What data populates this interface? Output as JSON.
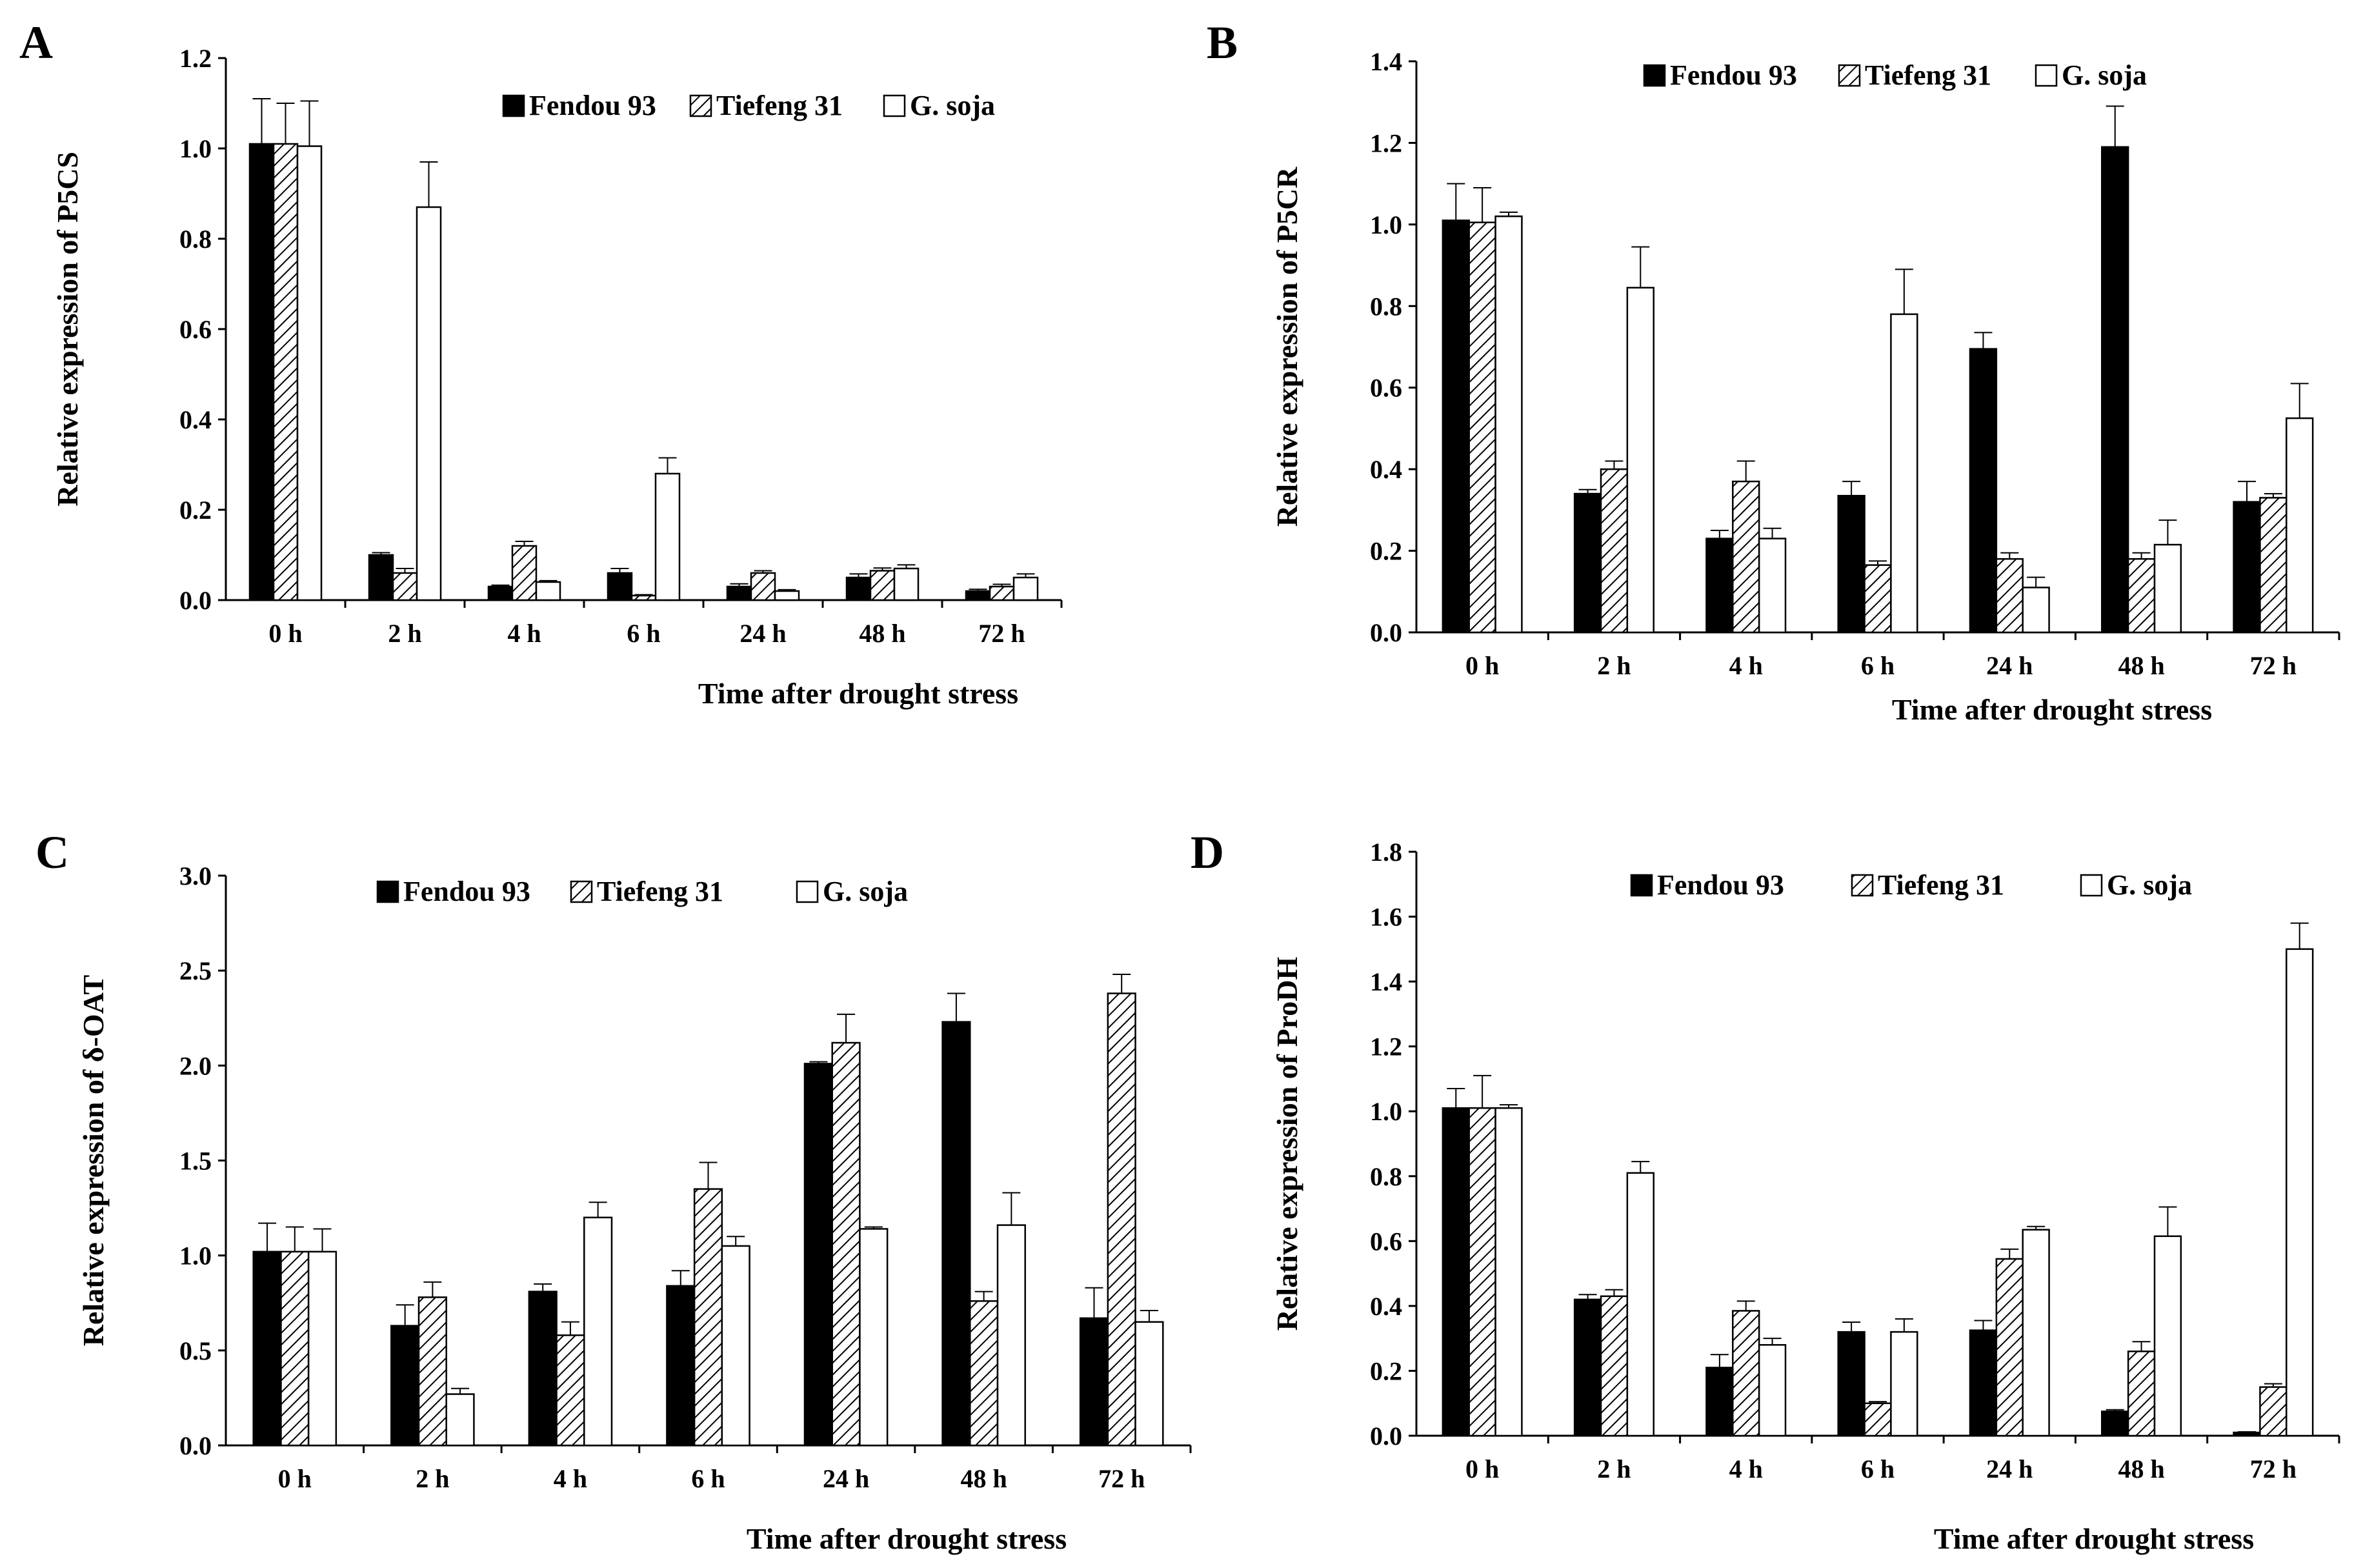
{
  "colors": {
    "series": [
      "#000000",
      "hatch",
      "#ffffff"
    ],
    "axis": "#000000",
    "bar_stroke": "#000000"
  },
  "chart_data": [
    {
      "panel": "A",
      "type": "bar",
      "categories": [
        "0 h",
        "2 h",
        "4 h",
        "6 h",
        "24 h",
        "48 h",
        "72 h"
      ],
      "series": [
        {
          "name": "Fendou 93",
          "values": [
            1.01,
            0.1,
            0.03,
            0.06,
            0.03,
            0.05,
            0.02
          ],
          "errors": [
            0.1,
            0.005,
            0.003,
            0.01,
            0.006,
            0.008,
            0.004
          ]
        },
        {
          "name": "Tiefeng 31",
          "values": [
            1.01,
            0.06,
            0.12,
            0.01,
            0.06,
            0.065,
            0.03
          ],
          "errors": [
            0.09,
            0.01,
            0.01,
            0.002,
            0.005,
            0.006,
            0.005
          ]
        },
        {
          "name": "G. soja",
          "values": [
            1.005,
            0.87,
            0.04,
            0.28,
            0.02,
            0.07,
            0.05
          ],
          "errors": [
            0.1,
            0.1,
            0.003,
            0.035,
            0.003,
            0.008,
            0.008
          ]
        }
      ],
      "ylabel": "Relative expression of P5CS",
      "xlabel": "Time after drought stress",
      "ylim": [
        0,
        1.2
      ],
      "yticks": [
        "0.0",
        "0.2",
        "0.4",
        "0.6",
        "0.8",
        "1.0",
        "1.2"
      ],
      "legend_position": "top-right"
    },
    {
      "panel": "B",
      "type": "bar",
      "categories": [
        "0 h",
        "2 h",
        "4 h",
        "6 h",
        "24 h",
        "48 h",
        "72 h"
      ],
      "series": [
        {
          "name": "Fendou 93",
          "values": [
            1.01,
            0.34,
            0.23,
            0.335,
            0.695,
            1.19,
            0.32
          ],
          "errors": [
            0.09,
            0.01,
            0.02,
            0.035,
            0.04,
            0.1,
            0.05
          ]
        },
        {
          "name": "Tiefeng 31",
          "values": [
            1.005,
            0.4,
            0.37,
            0.165,
            0.18,
            0.18,
            0.33
          ],
          "errors": [
            0.085,
            0.02,
            0.05,
            0.01,
            0.015,
            0.015,
            0.01
          ]
        },
        {
          "name": "G. soja",
          "values": [
            1.02,
            0.845,
            0.23,
            0.78,
            0.11,
            0.215,
            0.525
          ],
          "errors": [
            0.01,
            0.1,
            0.025,
            0.11,
            0.025,
            0.06,
            0.085
          ]
        }
      ],
      "ylabel": "Relative expression of P5CR",
      "xlabel": "Time after drought stress",
      "ylim": [
        0,
        1.4
      ],
      "yticks": [
        "0.0",
        "0.2",
        "0.4",
        "0.6",
        "0.8",
        "1.0",
        "1.2",
        "1.4"
      ],
      "legend_position": "top-right"
    },
    {
      "panel": "C",
      "type": "bar",
      "categories": [
        "0 h",
        "2 h",
        "4 h",
        "6 h",
        "24 h",
        "48 h",
        "72 h"
      ],
      "series": [
        {
          "name": "Fendou 93",
          "values": [
            1.02,
            0.63,
            0.81,
            0.84,
            2.01,
            2.23,
            0.67
          ],
          "errors": [
            0.15,
            0.11,
            0.04,
            0.08,
            0.01,
            0.15,
            0.16
          ]
        },
        {
          "name": "Tiefeng 31",
          "values": [
            1.02,
            0.78,
            0.58,
            1.35,
            2.12,
            0.76,
            2.38
          ],
          "errors": [
            0.13,
            0.08,
            0.07,
            0.14,
            0.15,
            0.05,
            0.1
          ]
        },
        {
          "name": "G. soja",
          "values": [
            1.02,
            0.27,
            1.2,
            1.05,
            1.14,
            1.16,
            0.65
          ],
          "errors": [
            0.12,
            0.03,
            0.08,
            0.05,
            0.01,
            0.17,
            0.06
          ]
        }
      ],
      "ylabel": "Relative expression of δ-OAT",
      "xlabel": "Time after drought stress",
      "ylim": [
        0,
        3.0
      ],
      "yticks": [
        "0.0",
        "0.5",
        "1.0",
        "1.5",
        "2.0",
        "2.5",
        "3.0"
      ],
      "legend_position": "top-center"
    },
    {
      "panel": "D",
      "type": "bar",
      "categories": [
        "0 h",
        "2 h",
        "4 h",
        "6 h",
        "24 h",
        "48 h",
        "72 h"
      ],
      "series": [
        {
          "name": "Fendou 93",
          "values": [
            1.01,
            0.42,
            0.21,
            0.32,
            0.325,
            0.075,
            0.01
          ],
          "errors": [
            0.06,
            0.015,
            0.04,
            0.03,
            0.03,
            0.005,
            0.002
          ]
        },
        {
          "name": "Tiefeng 31",
          "values": [
            1.01,
            0.43,
            0.385,
            0.1,
            0.545,
            0.26,
            0.15
          ],
          "errors": [
            0.1,
            0.02,
            0.03,
            0.005,
            0.03,
            0.03,
            0.01
          ]
        },
        {
          "name": "G. soja",
          "values": [
            1.01,
            0.81,
            0.28,
            0.32,
            0.635,
            0.615,
            1.5
          ],
          "errors": [
            0.01,
            0.035,
            0.02,
            0.04,
            0.01,
            0.09,
            0.08
          ]
        }
      ],
      "ylabel": "Relative expression of ProDH",
      "xlabel": "Time after drought stress",
      "ylim": [
        0,
        1.8
      ],
      "yticks": [
        "0.0",
        "0.2",
        "0.4",
        "0.6",
        "0.8",
        "1.0",
        "1.2",
        "1.4",
        "1.6",
        "1.8"
      ],
      "legend_position": "top-right"
    }
  ]
}
